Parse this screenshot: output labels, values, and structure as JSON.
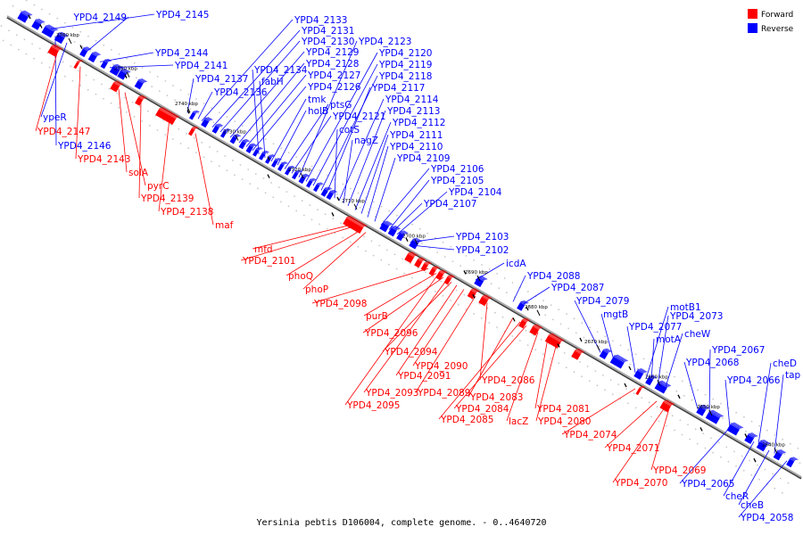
{
  "caption": "Yersinia pebtis D106004, complete genome. - 0..4640720",
  "legend": [
    {
      "label": "Forward",
      "color": "#ff0000"
    },
    {
      "label": "Reverse",
      "color": "#0000ff"
    }
  ],
  "colors": {
    "forward": "#ff0000",
    "reverse": "#0000ff",
    "axis": "#808080"
  },
  "kbp_ticks": [
    "2760 kbp",
    "2750 kbp",
    "2740 kbp",
    "2730 kbp",
    "2720 kbp",
    "2710 kbp",
    "2700 kbp",
    "2690 kbp",
    "2680 kbp",
    "2670 kbp",
    "2660 kbp",
    "2650 kbp",
    "2640 kbp"
  ],
  "reverse_labels": [
    "YPD4_2149",
    "YPD4_2145",
    "YPD4_2144",
    "YPD4_2141",
    "YPD4_2137",
    "YPD4_2136",
    "YPD4_2133",
    "YPD4_2131",
    "YPD4_2130",
    "YPD4_2129",
    "YPD4_2128",
    "YPD4_2127",
    "YPD4_2126",
    "YPD4_2134",
    "fabH",
    "tmk",
    "holB",
    "ptsG",
    "YPD4_2123",
    "YPD4_2120",
    "YPD4_2119",
    "YPD4_2118",
    "YPD4_2117",
    "YPD4_2114",
    "YPD4_2113",
    "YPD4_2112",
    "YPD4_2121",
    "cotS",
    "nagZ",
    "YPD4_2111",
    "YPD4_2110",
    "YPD4_2109",
    "YPD4_2106",
    "YPD4_2105",
    "YPD4_2104",
    "YPD4_2107",
    "YPD4_2103",
    "YPD4_2102",
    "icdA",
    "YPD4_2088",
    "YPD4_2087",
    "YPD4_2079",
    "mgtB",
    "motB1",
    "YPD4_2073",
    "YPD4_2077",
    "motA",
    "cheW",
    "YPD4_2067",
    "YPD4_2068",
    "cheD",
    "tap",
    "YPD4_2066",
    "ypeR",
    "YPD4_2146",
    "YPD4_2065",
    "cheR",
    "cheB",
    "YPD4_2058"
  ],
  "forward_labels": [
    "YPD4_2147",
    "YPD4_2143",
    "solA",
    "pyrC",
    "YPD4_2139",
    "YPD4_2138",
    "maf",
    "mfd",
    "YPD4_2101",
    "phoQ",
    "phoP",
    "YPD4_2098",
    "purB",
    "YPD4_2096",
    "YPD4_2094",
    "YPD4_2090",
    "YPD4_2091",
    "YPD4_2093",
    "YPD4_2089",
    "YPD4_2095",
    "YPD4_2086",
    "YPD4_2083",
    "YPD4_2084",
    "YPD4_2085",
    "YPD4_2081",
    "lacZ",
    "YPD4_2080",
    "YPD4_2074",
    "YPD4_2071",
    "YPD4_2069",
    "YPD4_2070"
  ]
}
